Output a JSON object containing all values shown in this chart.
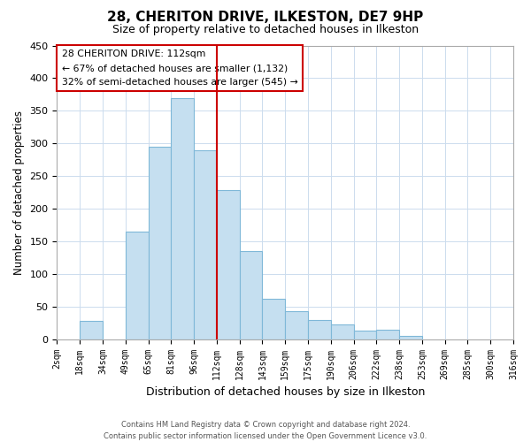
{
  "title": "28, CHERITON DRIVE, ILKESTON, DE7 9HP",
  "subtitle": "Size of property relative to detached houses in Ilkeston",
  "xlabel": "Distribution of detached houses by size in Ilkeston",
  "ylabel": "Number of detached properties",
  "bin_labels": [
    "2sqm",
    "18sqm",
    "34sqm",
    "49sqm",
    "65sqm",
    "81sqm",
    "96sqm",
    "112sqm",
    "128sqm",
    "143sqm",
    "159sqm",
    "175sqm",
    "190sqm",
    "206sqm",
    "222sqm",
    "238sqm",
    "253sqm",
    "269sqm",
    "285sqm",
    "300sqm",
    "316sqm"
  ],
  "bar_values": [
    0,
    28,
    0,
    165,
    295,
    370,
    290,
    228,
    135,
    62,
    43,
    30,
    23,
    13,
    15,
    5,
    0,
    0,
    0,
    0
  ],
  "bar_color": "#c5dff0",
  "bar_edge_color": "#7fb8d8",
  "vline_pos": 7,
  "vline_color": "#cc0000",
  "ylim": [
    0,
    450
  ],
  "yticks": [
    0,
    50,
    100,
    150,
    200,
    250,
    300,
    350,
    400,
    450
  ],
  "annotation_title": "28 CHERITON DRIVE: 112sqm",
  "annotation_line1": "← 67% of detached houses are smaller (1,132)",
  "annotation_line2": "32% of semi-detached houses are larger (545) →",
  "footer_line1": "Contains HM Land Registry data © Crown copyright and database right 2024.",
  "footer_line2": "Contains public sector information licensed under the Open Government Licence v3.0.",
  "background_color": "#ffffff",
  "grid_color": "#ccdcee"
}
